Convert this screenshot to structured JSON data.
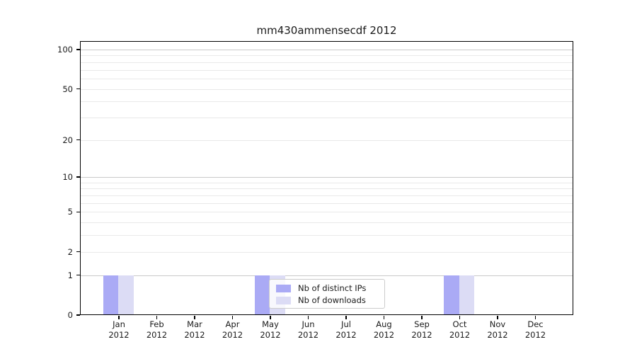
{
  "chart_data": {
    "type": "bar",
    "title": "mm430ammensecdf 2012",
    "categories": [
      "Jan",
      "Feb",
      "Mar",
      "Apr",
      "May",
      "Jun",
      "Jul",
      "Aug",
      "Sep",
      "Oct",
      "Nov",
      "Dec"
    ],
    "year_label": "2012",
    "series": [
      {
        "name": "Nb of distinct IPs",
        "color": "#aaaaf5",
        "values": [
          1,
          0,
          0,
          0,
          1,
          0,
          0,
          0,
          0,
          1,
          0,
          0
        ]
      },
      {
        "name": "Nb of downloads",
        "color": "#dcdcf5",
        "values": [
          1,
          0,
          0,
          0,
          1,
          0,
          0,
          0,
          0,
          1,
          0,
          0
        ]
      }
    ],
    "y_axis": {
      "scale": "log1p",
      "labeled_ticks": [
        0,
        1,
        2,
        5,
        10,
        20,
        50,
        100
      ],
      "major_gridlines": [
        1,
        10,
        100
      ],
      "minor_gridlines": [
        2,
        3,
        4,
        5,
        6,
        7,
        8,
        9,
        20,
        30,
        40,
        50,
        60,
        70,
        80,
        90
      ],
      "ylim": [
        0,
        120
      ]
    },
    "legend": {
      "position": "lower center"
    },
    "grid": "horizontal",
    "colors": {
      "major_grid": "#c9c9c9",
      "minor_grid": "#e9e9e9",
      "spine": "#000000",
      "text": "#1a1a1a",
      "legend_border": "#cccccc"
    }
  }
}
